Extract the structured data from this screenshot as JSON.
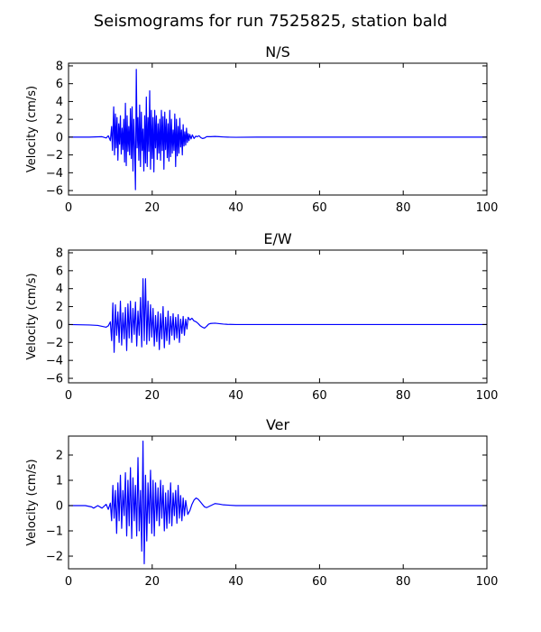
{
  "figure": {
    "title": "Seismograms for run 7525825, station bald"
  },
  "chart_data": [
    {
      "type": "line",
      "title": "N/S",
      "xlabel": "",
      "ylabel": "Velocity (cm/s)",
      "xlim": [
        0,
        100
      ],
      "ylim": [
        -6.5,
        8.3
      ],
      "xticks": [
        0,
        20,
        40,
        60,
        80,
        100
      ],
      "yticks": [
        -6,
        -4,
        -2,
        0,
        2,
        4,
        6,
        8
      ],
      "grid": false,
      "color": "#0000ff",
      "series": [
        {
          "x": [
            0,
            5,
            8,
            9,
            9.5,
            10,
            10.3,
            10.5,
            10.8,
            11,
            11.2,
            11.4,
            11.6,
            11.8,
            12,
            12.2,
            12.4,
            12.6,
            12.8,
            13,
            13.2,
            13.4,
            13.6,
            13.8,
            14,
            14.2,
            14.4,
            14.6,
            14.8,
            15,
            15.2,
            15.4,
            15.6,
            15.8,
            16,
            16.2,
            16.4,
            16.6,
            16.8,
            17,
            17.2,
            17.4,
            17.6,
            17.8,
            18,
            18.2,
            18.4,
            18.6,
            18.8,
            19,
            19.2,
            19.4,
            19.6,
            19.8,
            20,
            20.2,
            20.4,
            20.6,
            20.8,
            21,
            21.2,
            21.4,
            21.6,
            21.8,
            22,
            22.2,
            22.4,
            22.6,
            22.8,
            23,
            23.2,
            23.4,
            23.6,
            23.8,
            24,
            24.2,
            24.4,
            24.6,
            24.8,
            25,
            25.2,
            25.4,
            25.6,
            25.8,
            26,
            26.2,
            26.4,
            26.6,
            26.8,
            27,
            27.2,
            27.4,
            27.6,
            27.8,
            28,
            28.2,
            28.4,
            28.6,
            28.8,
            29,
            29.3,
            29.6,
            30,
            30.4,
            30.8,
            31.2,
            31.6,
            32,
            32.5,
            33,
            34,
            35,
            36,
            37,
            38,
            40,
            45,
            60,
            80,
            100
          ],
          "y": [
            0,
            0,
            0.05,
            -0.1,
            0.15,
            -0.4,
            1.2,
            -1.5,
            3.4,
            -2.0,
            2.6,
            -1.2,
            2.2,
            -2.6,
            1.5,
            -0.8,
            2.4,
            -1.9,
            1.0,
            -1.4,
            2.0,
            -2.8,
            3.8,
            -3.2,
            2.4,
            -1.6,
            1.2,
            -2.0,
            3.2,
            -2.4,
            3.4,
            -3.8,
            2.0,
            -1.1,
            -5.9,
            7.6,
            -1.2,
            2.2,
            -2.6,
            3.6,
            -3.3,
            2.8,
            -1.5,
            0.9,
            -3.8,
            2.4,
            -2.9,
            4.5,
            -3.3,
            2.2,
            -1.6,
            5.2,
            -3.6,
            3.0,
            -2.4,
            2.2,
            -3.9,
            3.0,
            -1.2,
            2.4,
            -2.5,
            1.5,
            -1.8,
            2.0,
            -2.6,
            3.0,
            -1.5,
            2.3,
            -3.6,
            2.8,
            -1.4,
            2.0,
            -2.3,
            1.5,
            -2.7,
            3.0,
            -2.2,
            2.0,
            -1.8,
            0.8,
            -1.5,
            2.6,
            -3.3,
            2.0,
            -2.1,
            1.2,
            -1.8,
            2.1,
            -1.1,
            0.8,
            -2.0,
            1.4,
            -1.0,
            0.6,
            -0.9,
            1.0,
            -0.6,
            0.4,
            -0.4,
            0.3,
            -0.2,
            0.25,
            -0.15,
            0.1,
            0.05,
            0.15,
            -0.05,
            -0.15,
            -0.1,
            0.05,
            0.05,
            0.08,
            0.05,
            0.02,
            0,
            -0.02,
            0,
            0,
            0,
            0
          ]
        }
      ]
    },
    {
      "type": "line",
      "title": "E/W",
      "xlabel": "",
      "ylabel": "Velocity (cm/s)",
      "xlim": [
        0,
        100
      ],
      "ylim": [
        -6.5,
        8.3
      ],
      "xticks": [
        0,
        20,
        40,
        60,
        80,
        100
      ],
      "yticks": [
        -6,
        -4,
        -2,
        0,
        2,
        4,
        6,
        8
      ],
      "grid": false,
      "color": "#0000ff",
      "series": [
        {
          "x": [
            0,
            5,
            7,
            8,
            9,
            9.5,
            10,
            10.3,
            10.6,
            10.9,
            11.2,
            11.5,
            11.8,
            12.1,
            12.4,
            12.7,
            13,
            13.3,
            13.6,
            13.9,
            14.2,
            14.5,
            14.8,
            15.1,
            15.4,
            15.7,
            16,
            16.3,
            16.6,
            16.9,
            17.2,
            17.5,
            17.8,
            18.1,
            18.4,
            18.7,
            19,
            19.3,
            19.6,
            19.9,
            20.2,
            20.5,
            20.8,
            21.1,
            21.4,
            21.7,
            22,
            22.3,
            22.6,
            22.9,
            23.2,
            23.5,
            23.8,
            24.1,
            24.4,
            24.7,
            25,
            25.3,
            25.6,
            25.9,
            26.2,
            26.5,
            26.8,
            27.1,
            27.4,
            27.7,
            28,
            28.3,
            28.6,
            29,
            29.5,
            30,
            30.5,
            31,
            31.5,
            32,
            32.5,
            33,
            33.5,
            34,
            35,
            36,
            37,
            38,
            40,
            45,
            60,
            80,
            100
          ],
          "y": [
            0,
            -0.05,
            -0.1,
            -0.2,
            -0.3,
            -0.15,
            0.3,
            -1.8,
            2.4,
            -3.1,
            2.2,
            -1.2,
            1.4,
            -2.0,
            2.6,
            -2.3,
            1.3,
            -1.6,
            1.9,
            -2.9,
            2.3,
            -1.5,
            2.6,
            -2.0,
            1.8,
            -1.1,
            2.5,
            -2.4,
            1.5,
            -1.2,
            3.0,
            -2.5,
            5.1,
            -1.8,
            5.1,
            -2.2,
            2.6,
            -1.8,
            2.2,
            -1.4,
            1.8,
            -2.4,
            1.0,
            -1.9,
            1.4,
            -2.8,
            1.2,
            -1.6,
            2.0,
            -2.6,
            0.8,
            -1.8,
            1.5,
            -2.2,
            0.9,
            -1.2,
            1.2,
            -1.7,
            0.8,
            -1.5,
            1.1,
            -2.0,
            0.6,
            -1.0,
            0.9,
            -1.2,
            0.6,
            -0.5,
            0.8,
            0.5,
            0.7,
            0.4,
            0.3,
            0.1,
            -0.15,
            -0.3,
            -0.4,
            -0.2,
            0.05,
            0.12,
            0.15,
            0.1,
            0.05,
            0.02,
            0,
            0,
            0,
            0,
            0
          ]
        }
      ]
    },
    {
      "type": "line",
      "title": "Ver",
      "xlabel": "",
      "ylabel": "Velocity (cm/s)",
      "xlim": [
        0,
        100
      ],
      "ylim": [
        -2.5,
        2.75
      ],
      "xticks": [
        0,
        20,
        40,
        60,
        80,
        100
      ],
      "yticks": [
        -2,
        -1,
        0,
        1,
        2
      ],
      "grid": false,
      "color": "#0000ff",
      "series": [
        {
          "x": [
            0,
            4,
            5.5,
            6,
            7,
            8,
            9,
            9.5,
            10,
            10.3,
            10.6,
            10.9,
            11.2,
            11.5,
            11.8,
            12.1,
            12.4,
            12.7,
            13,
            13.3,
            13.6,
            13.9,
            14.2,
            14.5,
            14.8,
            15.1,
            15.4,
            15.7,
            16,
            16.3,
            16.6,
            16.9,
            17.2,
            17.5,
            17.8,
            18.1,
            18.4,
            18.7,
            19,
            19.3,
            19.6,
            19.9,
            20.2,
            20.5,
            20.8,
            21.1,
            21.4,
            21.7,
            22,
            22.3,
            22.6,
            22.9,
            23.2,
            23.5,
            23.8,
            24.1,
            24.4,
            24.7,
            25,
            25.3,
            25.6,
            25.9,
            26.2,
            26.5,
            26.8,
            27.1,
            27.4,
            27.7,
            28,
            28.5,
            29,
            29.5,
            30,
            30.5,
            31,
            31.5,
            32,
            32.5,
            33,
            34,
            35,
            36,
            37,
            38,
            40,
            45,
            60,
            80,
            100
          ],
          "y": [
            0,
            0,
            -0.05,
            -0.1,
            0,
            -0.1,
            0.05,
            -0.15,
            0.1,
            -0.6,
            0.8,
            -0.5,
            0.6,
            -1.1,
            0.9,
            -0.6,
            1.2,
            -0.9,
            0.6,
            -0.4,
            1.3,
            -1.2,
            1.0,
            -0.8,
            1.5,
            -1.3,
            1.1,
            -0.6,
            0.8,
            -1.2,
            1.9,
            -1.0,
            0.6,
            -1.8,
            2.55,
            -2.3,
            1.2,
            -1.4,
            0.9,
            -0.7,
            1.4,
            -1.1,
            1.0,
            -1.2,
            0.9,
            -0.6,
            0.7,
            -0.8,
            1.0,
            -0.5,
            0.8,
            -1.0,
            0.5,
            -0.9,
            0.6,
            -0.7,
            0.9,
            -0.8,
            0.5,
            -0.4,
            0.6,
            -0.7,
            0.8,
            -0.5,
            0.4,
            -0.6,
            0.3,
            -0.4,
            0.2,
            -0.35,
            -0.2,
            0.05,
            0.22,
            0.3,
            0.25,
            0.15,
            0.05,
            -0.05,
            -0.08,
            0.0,
            0.08,
            0.06,
            0.03,
            0.02,
            0.0,
            0.0,
            0.0,
            0.0,
            0.0
          ]
        }
      ]
    }
  ]
}
